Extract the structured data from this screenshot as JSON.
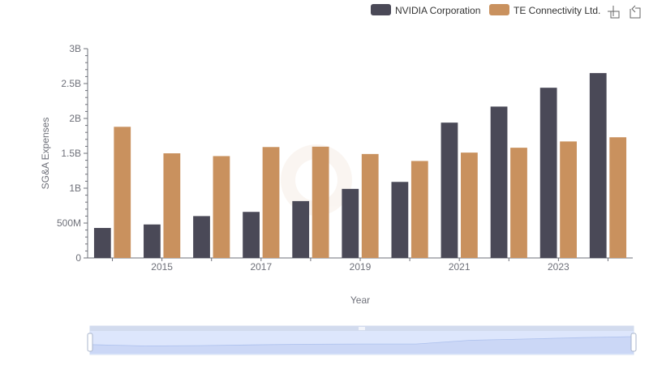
{
  "chart_data": {
    "type": "bar",
    "title": "",
    "xlabel": "Year",
    "ylabel": "SG&A Expenses",
    "x": [
      2014,
      2015,
      2016,
      2017,
      2018,
      2019,
      2020,
      2021,
      2022,
      2023,
      2024
    ],
    "x_tick_labels": [
      "2015",
      "2017",
      "2019",
      "2021",
      "2023"
    ],
    "y_ticks": [
      0,
      500000000,
      1000000000,
      1500000000,
      2000000000,
      2500000000,
      3000000000
    ],
    "y_tick_labels": [
      "0",
      "500M",
      "1B",
      "1.5B",
      "2B",
      "2.5B",
      "3B"
    ],
    "ylim": [
      0,
      3000000000
    ],
    "legend_position": "top-right",
    "grid": false,
    "series": [
      {
        "name": "NVIDIA Corporation",
        "color": "#4a4957",
        "values": [
          430000000,
          480000000,
          600000000,
          660000000,
          815000000,
          990000000,
          1090000000,
          1940000000,
          2170000000,
          2440000000,
          2650000000
        ]
      },
      {
        "name": "TE Connectivity Ltd.",
        "color": "#c9915e",
        "values": [
          1880000000,
          1500000000,
          1460000000,
          1590000000,
          1595000000,
          1490000000,
          1390000000,
          1510000000,
          1580000000,
          1670000000,
          1730000000
        ]
      }
    ]
  },
  "toolbox": {
    "zoom_icon": "zoom-icon",
    "restore_icon": "restore-icon"
  },
  "data_zoom": {
    "range_start": 0,
    "range_end": 100
  }
}
